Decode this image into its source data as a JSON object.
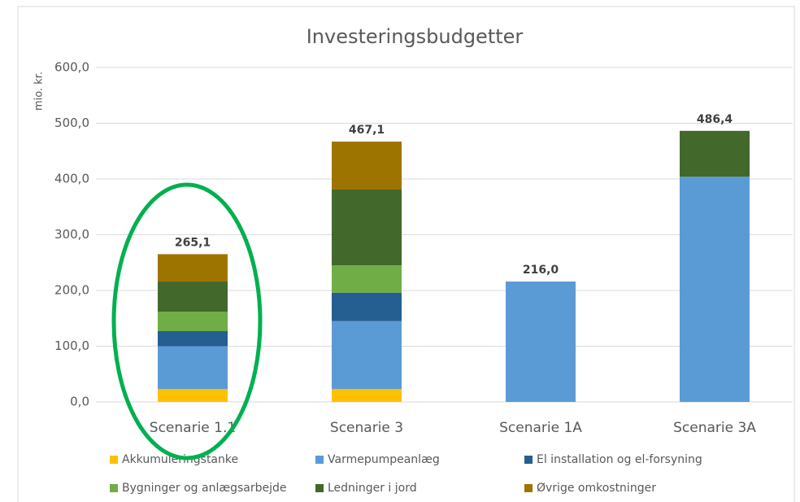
{
  "chart_data": {
    "type": "stacked_bar",
    "title": "Investeringsbudgetter",
    "y_label": "mio. kr.",
    "categories": [
      "Scenarie 1.1",
      "Scenarie 3",
      "Scenarie 1A",
      "Scenarie 3A"
    ],
    "series": [
      {
        "name": "Akkumuleringstanke",
        "color": "#ffc000",
        "values": [
          23,
          23,
          0,
          0
        ]
      },
      {
        "name": "Varmepumpeanlæg",
        "color": "#5b9bd5",
        "values": [
          77,
          122,
          216,
          404
        ]
      },
      {
        "name": "El installation og el-forsyning",
        "color": "#255e91",
        "values": [
          27,
          51,
          0,
          0
        ]
      },
      {
        "name": "Bygninger og anlægsarbejde",
        "color": "#70ad47",
        "values": [
          35,
          49,
          0,
          0
        ]
      },
      {
        "name": "Ledninger i jord",
        "color": "#43682b",
        "values": [
          54,
          136,
          0,
          82.4
        ]
      },
      {
        "name": "Øvrige omkostninger",
        "color": "#9e7400",
        "values": [
          49.1,
          86.1,
          0,
          0
        ]
      }
    ],
    "totals": [
      265.1,
      467.1,
      216,
      486.4
    ],
    "total_labels": [
      "265,1",
      "467,1",
      "216,0",
      "486,4"
    ],
    "ylim": [
      0,
      600
    ],
    "yticks": [
      {
        "value": 0,
        "label": "0,0"
      },
      {
        "value": 100,
        "label": "100,0"
      },
      {
        "value": 200,
        "label": "200,0"
      },
      {
        "value": 300,
        "label": "300,0"
      },
      {
        "value": 400,
        "label": "400,0"
      },
      {
        "value": 500,
        "label": "500,0"
      },
      {
        "value": 600,
        "label": "600,0"
      }
    ],
    "grid": true
  }
}
